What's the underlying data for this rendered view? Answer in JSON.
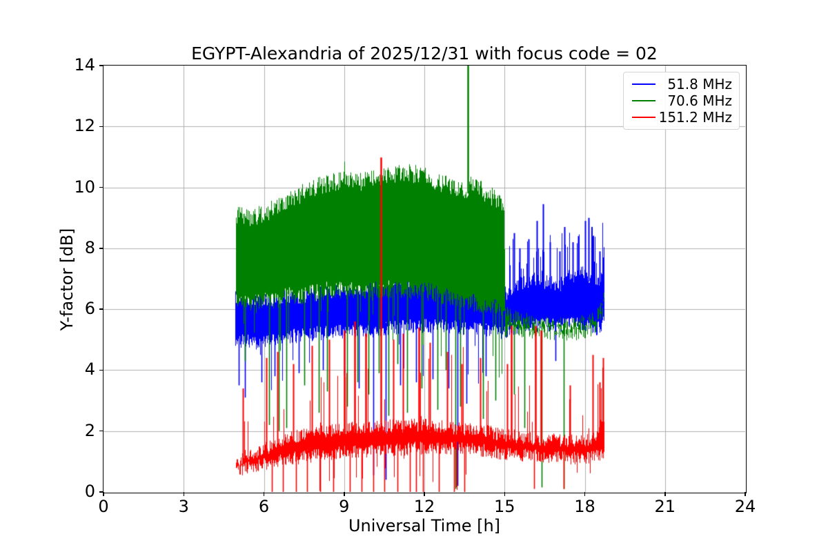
{
  "chart_data": {
    "type": "line",
    "title": "EGYPT-Alexandria of 2025/12/31 with focus code = 02",
    "xlabel": "Universal Time [h]",
    "ylabel": "Y-factor [dB]",
    "xlim": [
      0,
      24
    ],
    "ylim": [
      0,
      14
    ],
    "xticks": [
      0,
      3,
      6,
      9,
      12,
      15,
      18,
      21,
      24
    ],
    "yticks": [
      0,
      2,
      4,
      6,
      8,
      10,
      12,
      14
    ],
    "grid": true,
    "grid_color": "#b0b0b0",
    "background": "#ffffff",
    "legend": {
      "position": "upper right",
      "entries": [
        {
          "label": "51.8 MHz",
          "color": "#0000ff"
        },
        {
          "label": "70.6 MHz",
          "color": "#008000"
        },
        {
          "label": "151.2 MHz",
          "color": "#ff0000"
        }
      ]
    },
    "series": [
      {
        "name": "51.8 MHz",
        "color": "#0000ff",
        "t_range": [
          4.92,
          18.73
        ],
        "band": [
          [
            4.92,
            4.85,
            6.55
          ],
          [
            6.0,
            4.8,
            6.4
          ],
          [
            7.0,
            5.0,
            6.5
          ],
          [
            8.0,
            5.1,
            6.6
          ],
          [
            9.0,
            5.15,
            6.75
          ],
          [
            10.0,
            5.2,
            6.9
          ],
          [
            11.0,
            5.3,
            7.0
          ],
          [
            12.0,
            5.35,
            7.15
          ],
          [
            13.0,
            5.3,
            7.1
          ],
          [
            14.0,
            5.2,
            6.95
          ],
          [
            15.0,
            5.15,
            6.6
          ],
          [
            15.5,
            5.35,
            6.9
          ],
          [
            16.0,
            5.4,
            7.1
          ],
          [
            17.0,
            5.35,
            6.9
          ],
          [
            17.5,
            5.45,
            7.2
          ],
          [
            18.0,
            5.4,
            7.3
          ],
          [
            18.5,
            5.25,
            7.0
          ],
          [
            18.73,
            5.5,
            7.5
          ]
        ],
        "edge_jitter": 0.22,
        "spikes_up": [
          [
            15.35,
            8.5
          ],
          [
            15.55,
            8.0
          ],
          [
            15.9,
            8.3
          ],
          [
            16.2,
            8.9
          ],
          [
            16.45,
            9.45
          ],
          [
            16.7,
            8.2
          ],
          [
            17.05,
            7.9
          ],
          [
            17.25,
            8.7
          ],
          [
            17.55,
            8.2
          ],
          [
            17.75,
            8.4
          ],
          [
            18.0,
            8.9
          ],
          [
            18.15,
            9.0
          ],
          [
            18.3,
            8.4
          ],
          [
            18.55,
            7.9
          ],
          [
            18.68,
            7.7
          ]
        ],
        "spikes_down": [
          [
            5.05,
            3.5
          ],
          [
            5.3,
            3.1
          ],
          [
            5.9,
            3.6
          ],
          [
            6.4,
            3.8
          ],
          [
            7.3,
            3.9
          ],
          [
            8.2,
            4.0
          ],
          [
            9.0,
            3.8
          ],
          [
            9.55,
            3.4
          ],
          [
            10.08,
            0.55
          ],
          [
            10.55,
            0.4
          ],
          [
            11.1,
            3.5
          ],
          [
            11.7,
            3.6
          ],
          [
            12.3,
            3.7
          ],
          [
            12.9,
            3.4
          ],
          [
            13.25,
            0.2
          ],
          [
            13.57,
            2.9
          ],
          [
            14.3,
            3.8
          ],
          [
            16.9,
            4.3
          ]
        ],
        "rand_up": [
          {
            "t": [
              4.92,
              15.0
            ],
            "p": 0.04,
            "max_add": 0.8
          },
          {
            "t": [
              15.05,
              18.73
            ],
            "p": 0.28,
            "max_add": 1.7
          }
        ],
        "rand_down": [
          {
            "t": [
              4.92,
              15.0
            ],
            "p": 0.04,
            "min": 3.3
          }
        ]
      },
      {
        "name": "70.6 MHz",
        "color": "#008000",
        "t_range": [
          4.95,
          18.73
        ],
        "band": [
          [
            4.95,
            6.1,
            9.25
          ],
          [
            5.5,
            6.0,
            9.1
          ],
          [
            6.0,
            6.1,
            9.3
          ],
          [
            6.5,
            6.2,
            9.5
          ],
          [
            7.0,
            6.3,
            9.7
          ],
          [
            7.5,
            6.35,
            10.0
          ],
          [
            8.0,
            6.45,
            10.15
          ],
          [
            8.5,
            6.5,
            10.3
          ],
          [
            9.0,
            6.5,
            10.35
          ],
          [
            9.5,
            6.45,
            10.3
          ],
          [
            10.0,
            6.45,
            10.4
          ],
          [
            10.5,
            6.5,
            10.5
          ],
          [
            11.0,
            6.5,
            10.6
          ],
          [
            11.5,
            6.5,
            10.6
          ],
          [
            12.0,
            6.45,
            10.5
          ],
          [
            12.5,
            6.35,
            10.3
          ],
          [
            13.0,
            6.25,
            10.2
          ],
          [
            13.55,
            6.15,
            10.05
          ],
          [
            13.75,
            6.1,
            10.2
          ],
          [
            14.0,
            6.05,
            10.1
          ],
          [
            14.5,
            5.95,
            9.85
          ],
          [
            14.98,
            5.8,
            9.5
          ],
          [
            15.02,
            5.1,
            5.95
          ],
          [
            15.3,
            5.25,
            5.9
          ],
          [
            16.0,
            5.2,
            5.65
          ],
          [
            17.0,
            5.1,
            5.55
          ],
          [
            17.8,
            5.15,
            5.6
          ],
          [
            18.3,
            5.3,
            5.8
          ],
          [
            18.6,
            5.6,
            6.2
          ],
          [
            18.73,
            6.0,
            6.45
          ]
        ],
        "edge_jitter": 0.28,
        "spikes_up": [
          [
            13.62,
            14.3
          ]
        ],
        "spikes_down": [
          [
            5.3,
            4.3
          ],
          [
            6.2,
            2.2
          ],
          [
            6.55,
            2.0
          ],
          [
            6.85,
            2.1
          ],
          [
            7.5,
            3.5
          ],
          [
            8.05,
            2.6
          ],
          [
            8.35,
            3.3
          ],
          [
            9.1,
            2.8
          ],
          [
            9.5,
            3.6
          ],
          [
            9.9,
            3.2
          ],
          [
            10.3,
            3.9
          ],
          [
            10.65,
            2.5
          ],
          [
            11.0,
            4.2
          ],
          [
            11.35,
            2.6
          ],
          [
            11.9,
            3.4
          ],
          [
            12.5,
            2.7
          ],
          [
            12.8,
            4.0
          ],
          [
            13.15,
            0.1
          ],
          [
            13.35,
            2.8
          ],
          [
            14.2,
            2.4
          ],
          [
            14.65,
            3.0
          ],
          [
            15.35,
            3.2
          ],
          [
            15.75,
            2.1
          ],
          [
            16.4,
            0.15
          ],
          [
            17.2,
            0.1
          ]
        ],
        "rand_up": [
          {
            "t": [
              4.95,
              15.0
            ],
            "p": 0.03,
            "max_add": 0.4
          }
        ],
        "rand_down": [
          {
            "t": [
              4.95,
              15.0
            ],
            "p": 0.055,
            "min": 3.6
          }
        ]
      },
      {
        "name": "151.2 MHz",
        "color": "#ff0000",
        "t_range": [
          4.95,
          18.73
        ],
        "band": [
          [
            4.95,
            0.6,
            1.1
          ],
          [
            5.5,
            0.7,
            1.35
          ],
          [
            6.0,
            0.8,
            1.5
          ],
          [
            6.5,
            0.9,
            1.7
          ],
          [
            7.0,
            1.0,
            1.9
          ],
          [
            7.5,
            1.05,
            2.0
          ],
          [
            8.0,
            1.1,
            2.05
          ],
          [
            9.0,
            1.2,
            2.15
          ],
          [
            10.0,
            1.25,
            2.2
          ],
          [
            11.0,
            1.3,
            2.25
          ],
          [
            12.0,
            1.35,
            2.3
          ],
          [
            13.0,
            1.35,
            2.2
          ],
          [
            14.0,
            1.3,
            2.15
          ],
          [
            15.0,
            1.15,
            1.95
          ],
          [
            16.0,
            1.1,
            1.85
          ],
          [
            17.0,
            1.05,
            1.8
          ],
          [
            18.0,
            1.0,
            1.75
          ],
          [
            18.4,
            1.05,
            1.9
          ],
          [
            18.73,
            1.2,
            2.6
          ]
        ],
        "edge_jitter": 0.2,
        "spikes_up": [
          [
            5.2,
            3.4
          ],
          [
            6.1,
            4.4
          ],
          [
            6.5,
            4.6
          ],
          [
            7.1,
            4.2
          ],
          [
            7.8,
            4.8
          ],
          [
            8.45,
            5.0
          ],
          [
            9.0,
            5.3
          ],
          [
            9.4,
            5.6
          ],
          [
            9.8,
            5.2
          ],
          [
            10.37,
            10.98
          ],
          [
            10.85,
            5.0
          ],
          [
            11.2,
            5.2
          ],
          [
            11.8,
            5.4
          ],
          [
            12.2,
            4.9
          ],
          [
            12.85,
            4.6
          ],
          [
            13.4,
            4.2
          ],
          [
            14.1,
            4.4
          ],
          [
            15.1,
            4.2
          ],
          [
            15.25,
            5.45
          ],
          [
            16.15,
            5.45
          ],
          [
            16.35,
            5.3
          ],
          [
            17.45,
            3.5
          ],
          [
            18.3,
            4.5
          ],
          [
            18.55,
            3.6
          ],
          [
            18.68,
            4.4
          ]
        ],
        "spikes_down": [
          [
            6.3,
            0
          ],
          [
            6.7,
            0
          ],
          [
            7.2,
            0
          ],
          [
            7.6,
            0
          ],
          [
            8.1,
            0
          ],
          [
            8.6,
            0
          ],
          [
            9.2,
            0
          ],
          [
            9.65,
            0
          ],
          [
            10.1,
            0
          ],
          [
            10.5,
            0
          ],
          [
            11.0,
            0
          ],
          [
            11.45,
            0
          ],
          [
            11.7,
            0
          ],
          [
            11.95,
            0
          ],
          [
            12.55,
            0
          ],
          [
            13.1,
            0
          ],
          [
            13.5,
            0
          ],
          [
            16.1,
            0.1
          ],
          [
            17.2,
            0.1
          ]
        ],
        "rand_up": [
          {
            "t": [
              5.0,
              14.5
            ],
            "p": 0.1,
            "max_add": 2.6
          },
          {
            "t": [
              14.5,
              18.4
            ],
            "p": 0.06,
            "max_add": 2.2
          },
          {
            "t": [
              18.4,
              18.73
            ],
            "p": 0.25,
            "max_add": 1.8
          }
        ],
        "rand_down": [
          {
            "t": [
              5.8,
              13.6
            ],
            "p": 0.05,
            "min": 0.0
          },
          {
            "t": [
              13.6,
              18.73
            ],
            "p": 0.02,
            "min": 0.5
          }
        ]
      }
    ]
  }
}
